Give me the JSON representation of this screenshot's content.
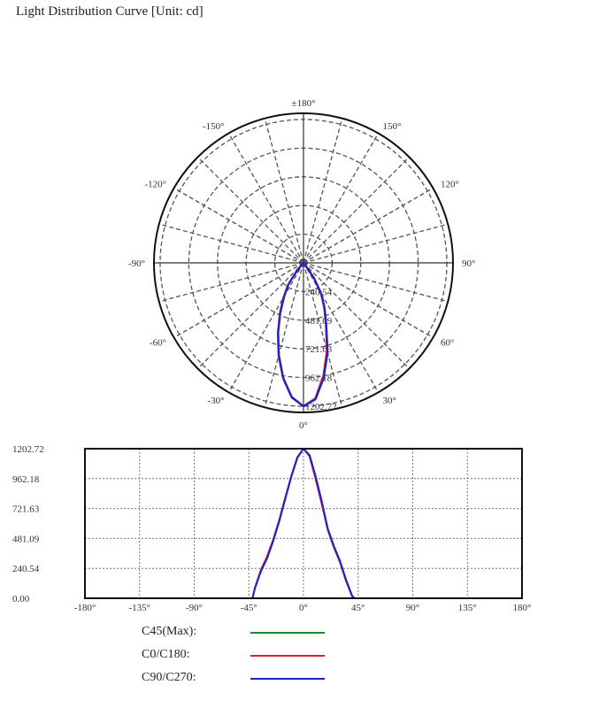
{
  "title": "Light Distribution Curve [Unit: cd]",
  "colors": {
    "C45": "#1a8a2a",
    "C0": "#e02020",
    "C90": "#2020d0",
    "frame": "#111111",
    "grid": "#555555"
  },
  "chart_data": [
    {
      "type": "polar",
      "angle_labels": [
        "±180°",
        "-150°",
        "150°",
        "-120°",
        "120°",
        "-90°",
        "90°",
        "-60°",
        "60°",
        "-30°",
        "30°",
        "0°"
      ],
      "angle_label_values": [
        180,
        -150,
        150,
        -120,
        120,
        -90,
        90,
        -60,
        60,
        -30,
        30,
        0
      ],
      "radial_ticks": [
        "240.54",
        "481.09",
        "721.63",
        "962.18",
        "1202.72"
      ],
      "radial_tick_values": [
        240.54,
        481.09,
        721.63,
        962.18,
        1202.72
      ],
      "angle_grid_step": 15,
      "series": [
        {
          "name": "C45(Max)",
          "color": "#1a8a2a",
          "x": [
            -42,
            -40,
            -35,
            -30,
            -25,
            -20,
            -15,
            -10,
            -5,
            0,
            5,
            10,
            15,
            20,
            25,
            30,
            35,
            40,
            42
          ],
          "y": [
            0,
            80,
            220,
            320,
            460,
            620,
            800,
            980,
            1130,
            1202.72,
            1150,
            980,
            780,
            560,
            420,
            300,
            150,
            20,
            0
          ]
        },
        {
          "name": "C0/C180",
          "color": "#e02020",
          "x": [
            -42,
            -40,
            -35,
            -30,
            -25,
            -20,
            -15,
            -10,
            -5,
            0,
            5,
            10,
            15,
            20,
            25,
            30,
            35,
            40,
            42
          ],
          "y": [
            0,
            85,
            230,
            335,
            470,
            630,
            810,
            985,
            1135,
            1202.72,
            1140,
            960,
            760,
            550,
            410,
            290,
            140,
            15,
            0
          ]
        },
        {
          "name": "C90/C270",
          "color": "#2020d0",
          "x": [
            -42,
            -40,
            -35,
            -30,
            -25,
            -20,
            -15,
            -10,
            -5,
            0,
            5,
            10,
            15,
            20,
            25,
            30,
            35,
            40,
            42
          ],
          "y": [
            0,
            80,
            220,
            320,
            460,
            620,
            800,
            980,
            1130,
            1202.72,
            1150,
            980,
            780,
            560,
            420,
            300,
            150,
            20,
            0
          ]
        }
      ]
    },
    {
      "type": "line",
      "xlim": [
        -180,
        180
      ],
      "ylim": [
        0,
        1202.72
      ],
      "x_ticks": [
        "-180°",
        "-135°",
        "-90°",
        "-45°",
        "0°",
        "45°",
        "90°",
        "135°",
        "180°"
      ],
      "x_tick_values": [
        -180,
        -135,
        -90,
        -45,
        0,
        45,
        90,
        135,
        180
      ],
      "y_ticks": [
        "0.00",
        "240.54",
        "481.09",
        "721.63",
        "962.18",
        "1202.72"
      ],
      "y_tick_values": [
        0,
        240.54,
        481.09,
        721.63,
        962.18,
        1202.72
      ],
      "grid": true,
      "legend": {
        "placement": "bottom",
        "entries": [
          "C45(Max):",
          "C0/C180:",
          "C90/C270:"
        ]
      },
      "series": [
        {
          "name": "C45(Max)",
          "color": "#1a8a2a",
          "x": [
            -90,
            -42,
            -40,
            -35,
            -30,
            -25,
            -20,
            -15,
            -10,
            -5,
            0,
            5,
            10,
            15,
            20,
            25,
            30,
            35,
            40,
            42,
            90
          ],
          "y": [
            0,
            0,
            80,
            220,
            320,
            460,
            620,
            800,
            980,
            1130,
            1202.72,
            1150,
            980,
            780,
            560,
            420,
            300,
            150,
            20,
            0,
            0
          ]
        },
        {
          "name": "C0/C180",
          "color": "#e02020",
          "x": [
            -90,
            -42,
            -40,
            -35,
            -30,
            -25,
            -20,
            -15,
            -10,
            -5,
            0,
            5,
            10,
            15,
            20,
            25,
            30,
            35,
            40,
            42,
            90
          ],
          "y": [
            0,
            0,
            85,
            230,
            335,
            470,
            630,
            810,
            985,
            1135,
            1202.72,
            1140,
            960,
            760,
            550,
            410,
            290,
            140,
            15,
            0,
            0
          ]
        },
        {
          "name": "C90/C270",
          "color": "#2020d0",
          "x": [
            -90,
            -42,
            -40,
            -35,
            -30,
            -25,
            -20,
            -15,
            -10,
            -5,
            0,
            5,
            10,
            15,
            20,
            25,
            30,
            35,
            40,
            42,
            90
          ],
          "y": [
            0,
            0,
            80,
            220,
            320,
            460,
            620,
            800,
            980,
            1130,
            1202.72,
            1150,
            980,
            780,
            560,
            420,
            300,
            150,
            20,
            0,
            0
          ]
        }
      ]
    }
  ]
}
